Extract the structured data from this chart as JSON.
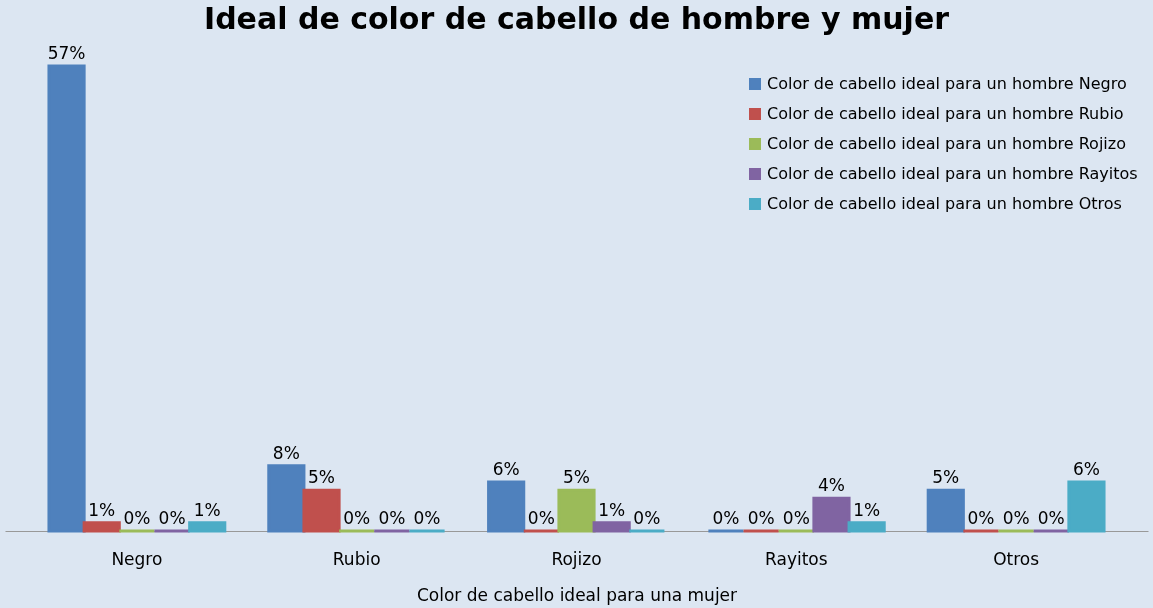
{
  "chart_data": {
    "type": "bar",
    "title": "Ideal de color de cabello de hombre y mujer",
    "xlabel": "Color de cabello ideal para una mujer",
    "categories": [
      "Negro",
      "Rubio",
      "Rojizo",
      "Rayitos",
      "Otros"
    ],
    "series": [
      {
        "name": "Color de cabello ideal para un hombre Negro",
        "color": "#4f81bd",
        "values": [
          57,
          8,
          6,
          0,
          5
        ],
        "value_labels": [
          "57%",
          "8%",
          "6%",
          "0%",
          "5%"
        ]
      },
      {
        "name": "Color de cabello ideal para un hombre Rubio",
        "color": "#c0504d",
        "values": [
          1,
          5,
          0,
          0,
          0
        ],
        "value_labels": [
          "1%",
          "5%",
          "0%",
          "0%",
          "0%"
        ]
      },
      {
        "name": "Color de cabello ideal para un hombre Rojizo",
        "color": "#9bbb59",
        "values": [
          0,
          0,
          5,
          0,
          0
        ],
        "value_labels": [
          "0%",
          "0%",
          "5%",
          "0%",
          "0%"
        ]
      },
      {
        "name": "Color de cabello ideal para un hombre Rayitos",
        "color": "#8064a2",
        "values": [
          0,
          0,
          1,
          4,
          0
        ],
        "value_labels": [
          "0%",
          "0%",
          "1%",
          "4%",
          "0%"
        ]
      },
      {
        "name": "Color de cabello ideal para un hombre Otros",
        "color": "#4bacc6",
        "values": [
          1,
          0,
          0,
          1,
          6
        ],
        "value_labels": [
          "1%",
          "0%",
          "0%",
          "1%",
          "6%"
        ]
      }
    ],
    "legend": "top right",
    "grid": false
  }
}
